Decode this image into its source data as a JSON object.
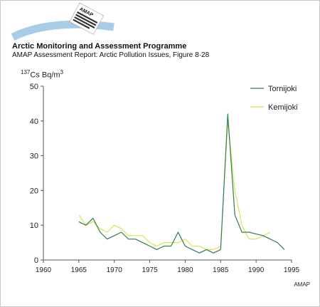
{
  "header": {
    "title": "Arctic Monitoring and Assessment Programme",
    "subtitle": "AMAP Assessment Report: Arctic Pollution Issues, Figure 8·28"
  },
  "logo": {
    "text": "AMAP",
    "arc_color": "#a8cde6"
  },
  "footer": {
    "credit": "AMAP"
  },
  "chart_data": {
    "type": "line",
    "title": "",
    "ylabel": {
      "base": "Cs Bq/m",
      "superscript_prefix": "137",
      "superscript_suffix": "3"
    },
    "xlabel": "",
    "xlim": [
      1960,
      1995
    ],
    "ylim": [
      0,
      50
    ],
    "xticks": [
      1960,
      1965,
      1970,
      1975,
      1980,
      1985,
      1990,
      1995
    ],
    "yticks": [
      0,
      10,
      20,
      30,
      40,
      50
    ],
    "grid": false,
    "legend_position": "top-right",
    "series": [
      {
        "name": "Tornijoki",
        "color": "#2e7d5b",
        "x": [
          1965,
          1966,
          1967,
          1968,
          1969,
          1970,
          1971,
          1972,
          1973,
          1974,
          1975,
          1976,
          1977,
          1978,
          1979,
          1980,
          1981,
          1982,
          1983,
          1984,
          1985,
          1986,
          1987,
          1988,
          1989,
          1990,
          1991,
          1992,
          1993,
          1994
        ],
        "values": [
          11,
          10,
          12,
          8,
          6,
          7,
          8,
          6,
          6,
          5,
          4,
          3,
          4,
          4,
          8,
          4,
          3,
          2,
          3,
          2,
          3,
          42,
          13,
          8,
          8,
          7.5,
          7,
          6,
          5,
          3
        ]
      },
      {
        "name": "Kemijoki",
        "color": "#d4e84a",
        "x": [
          1965,
          1966,
          1967,
          1968,
          1969,
          1970,
          1971,
          1972,
          1973,
          1974,
          1975,
          1976,
          1977,
          1978,
          1979,
          1980,
          1981,
          1982,
          1983,
          1984,
          1985,
          1986,
          1987,
          1988,
          1989,
          1990,
          1991,
          1992
        ],
        "values": [
          13,
          10,
          11,
          9,
          8,
          10,
          9,
          7,
          7,
          7,
          5,
          4,
          5,
          5,
          5,
          6,
          4,
          4,
          3,
          3,
          4,
          40,
          20,
          10,
          6,
          6,
          7,
          8
        ]
      }
    ]
  }
}
